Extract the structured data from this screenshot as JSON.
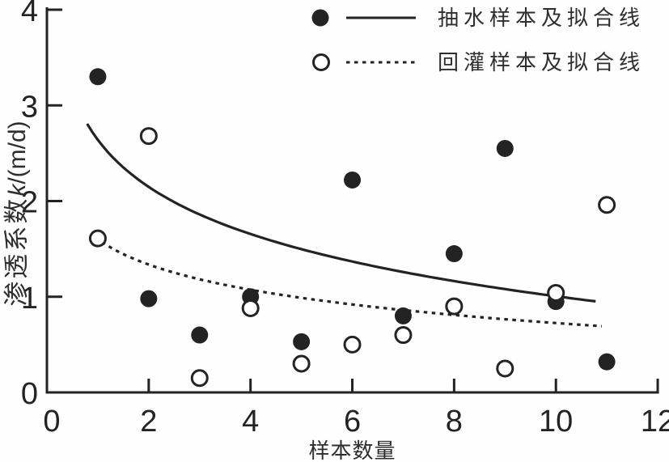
{
  "figure": {
    "background": "#fefefe",
    "ink_color": "#232323"
  },
  "chart_data": {
    "type": "scatter",
    "title": "",
    "xlabel": "样本数量",
    "ylabel": "渗透系数k/(m/d)",
    "ylabel_parts": {
      "prefix": "渗透系数",
      "italic": "k",
      "suffix": "/(m/d)"
    },
    "xlim": [
      0,
      12
    ],
    "ylim": [
      0,
      4
    ],
    "xticks": [
      0,
      2,
      4,
      6,
      8,
      10,
      12
    ],
    "yticks": [
      0,
      1,
      2,
      3,
      4
    ],
    "grid": false,
    "legend_position": "top-center",
    "series": [
      {
        "name": "抽水样本及拟合线",
        "marker": "filled-circle",
        "line_style": "solid",
        "x": [
          1,
          2,
          3,
          4,
          5,
          6,
          7,
          8,
          9,
          10,
          11
        ],
        "y": [
          3.3,
          0.98,
          0.6,
          1.0,
          0.53,
          2.22,
          0.8,
          1.45,
          2.55,
          0.95,
          0.32
        ],
        "fit_line": {
          "model": "y = a + b*ln(x)",
          "a": 2.64,
          "b": -0.71,
          "x_range": [
            0.79,
            10.78
          ]
        }
      },
      {
        "name": "回灌样本及拟合线",
        "marker": "open-circle",
        "line_style": "dashed",
        "x": [
          1,
          2,
          3,
          4,
          5,
          6,
          7,
          8,
          9,
          10,
          11
        ],
        "y": [
          1.61,
          2.68,
          0.15,
          0.88,
          0.3,
          0.5,
          0.6,
          0.9,
          0.25,
          1.04,
          1.96
        ],
        "fit_line": {
          "model": "y = a + b*ln(x)",
          "a": 1.6,
          "b": -0.38,
          "x_range": [
            0.95,
            10.9
          ]
        }
      }
    ]
  }
}
